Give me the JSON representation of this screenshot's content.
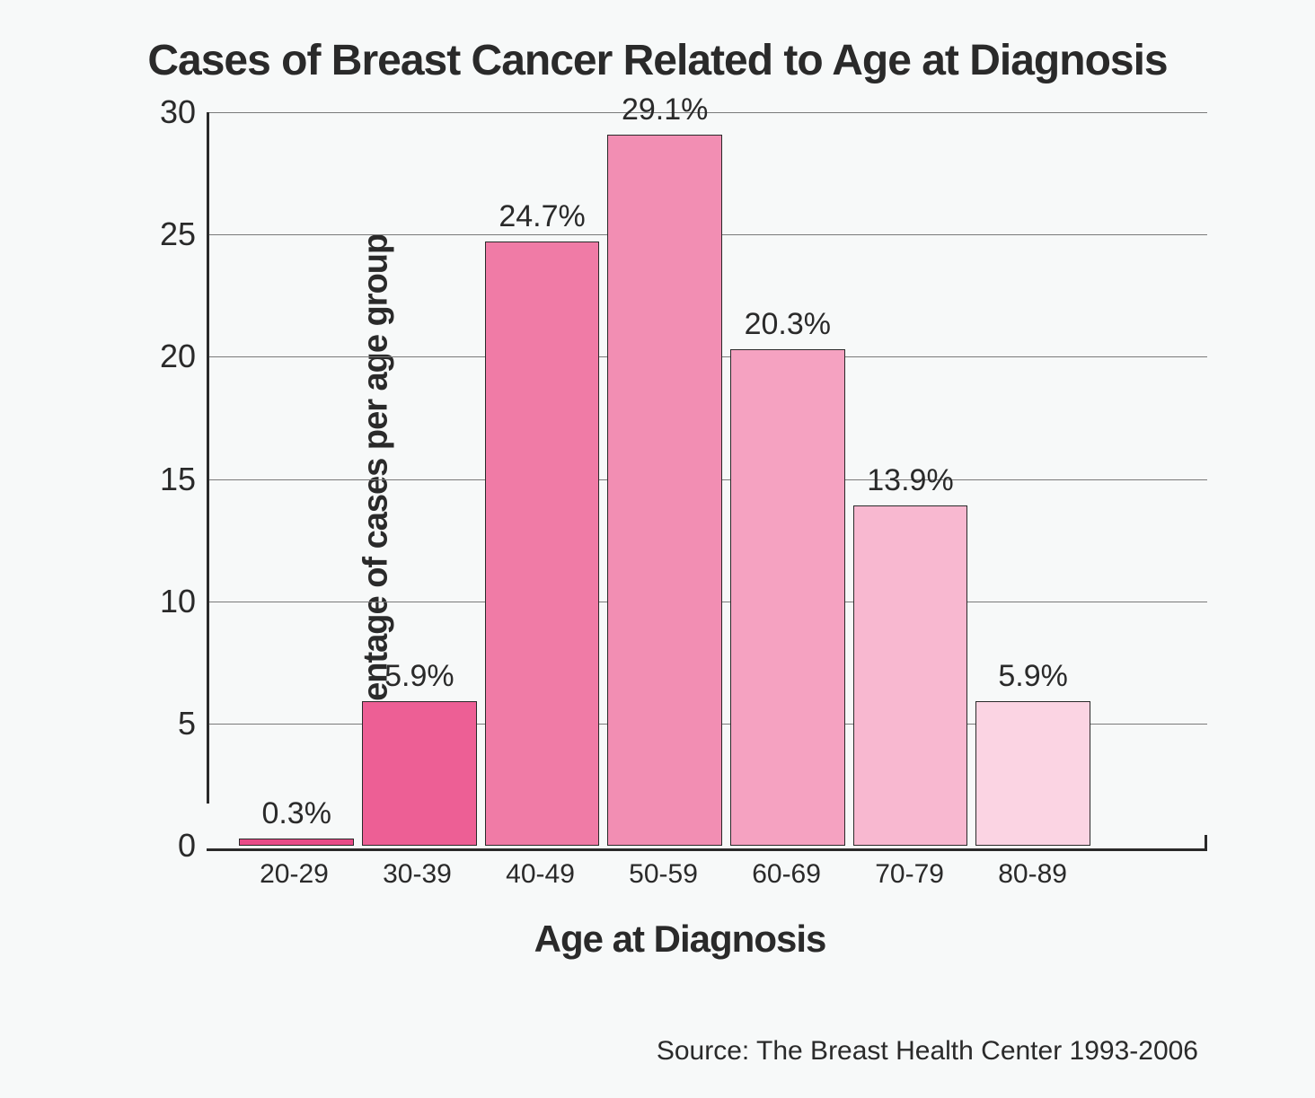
{
  "chart": {
    "type": "bar",
    "title": "Cases of Breast Cancer Related to Age at Diagnosis",
    "ylabel": "Percentage of cases per age group",
    "xlabel": "Age at Diagnosis",
    "source": "Source: The Breast Health Center 1993-2006",
    "categories": [
      "20-29",
      "30-39",
      "40-49",
      "50-59",
      "60-69",
      "70-79",
      "80-89"
    ],
    "values": [
      0.3,
      5.9,
      24.7,
      29.1,
      20.3,
      13.9,
      5.9
    ],
    "value_labels": [
      "0.3%",
      "5.9%",
      "24.7%",
      "29.1%",
      "20.3%",
      "13.9%",
      "5.9%"
    ],
    "bar_colors": [
      "#e84a87",
      "#ed5f95",
      "#f07ba6",
      "#f28eb3",
      "#f5a2c1",
      "#f8b8d0",
      "#fbd4e3"
    ],
    "ylim": [
      0,
      30
    ],
    "yticks": [
      0,
      5,
      10,
      15,
      20,
      25,
      30
    ],
    "ytick_labels": [
      "0",
      "5",
      "10",
      "15",
      "20",
      "25",
      "30"
    ],
    "background_color": "#f7f9f9",
    "axis_color": "#2a2a2a",
    "grid_color": "#7a7a7a",
    "text_color": "#2a2a2a",
    "title_fontsize": 48,
    "label_fontsize": 38,
    "tick_fontsize": 36,
    "xtick_fontsize": 30,
    "barlabel_fontsize": 34,
    "source_fontsize": 30,
    "bar_width_pct": 11.5,
    "bar_gap_pct": 0.8,
    "bars_start_pct": 3
  }
}
